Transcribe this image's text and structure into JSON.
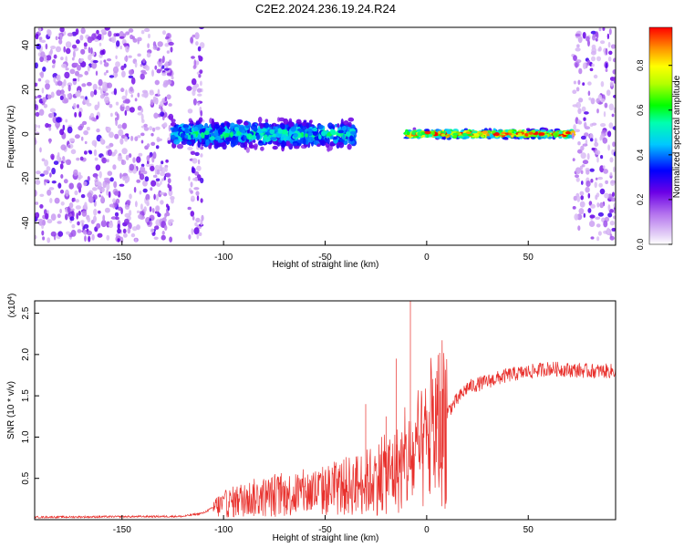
{
  "title": "C2E2.2024.236.19.24.R24",
  "spectrogram": {
    "type": "heatmap",
    "ylabel": "Frequency (Hz)",
    "xlabel": "Height of straight line (km)",
    "xlim": [
      -193,
      93
    ],
    "ylim": [
      -50,
      48
    ],
    "xticks": [
      -150,
      -100,
      -50,
      0,
      50
    ],
    "yticks": [
      -40,
      -20,
      0,
      20,
      40
    ],
    "colorbar": {
      "label": "Normalized spectral amplitude",
      "range": [
        0,
        0.97
      ],
      "ticks": [
        "0.0",
        "0.2",
        "0.4",
        "0.6",
        "0.8"
      ]
    },
    "regions": [
      {
        "name": "noise",
        "x": [
          -193,
          -125
        ],
        "spread_hz": 48,
        "density": 0.85
      },
      {
        "name": "noise-band",
        "x": [
          -117,
          -110
        ],
        "spread_hz": 48,
        "density": 0.9
      },
      {
        "name": "echo-broad",
        "x": [
          -125,
          -35
        ],
        "center_hz": 0,
        "half_width_hz": 8,
        "amplitude": 0.45
      },
      {
        "name": "echo-narrow",
        "x": [
          -10,
          72
        ],
        "center_hz": 0,
        "half_width_hz": 2.5,
        "amplitude": 0.9
      },
      {
        "name": "noise-right",
        "x": [
          72,
          93
        ],
        "spread_hz": 48,
        "density": 0.75
      }
    ]
  },
  "snr_plot": {
    "type": "line",
    "ylabel": "SNR (10 * v/v)",
    "xlabel": "Height of straight line (km)",
    "multiplier": "(x10",
    "multiplier_exp": "4",
    "multiplier_close": ")",
    "xlim": [
      -193,
      93
    ],
    "ylim": [
      0,
      26500
    ],
    "xticks": [
      -150,
      -100,
      -50,
      0,
      50
    ],
    "yticks": [
      "0.5",
      "1.0",
      "1.5",
      "2.0",
      "2.5"
    ],
    "color": "#e8302c",
    "anchors": {
      "x": [
        -193,
        -120,
        -110,
        -105,
        -90,
        -70,
        -50,
        -30,
        -15,
        -5,
        0,
        10,
        20,
        40,
        60,
        80,
        93
      ],
      "y": [
        300,
        400,
        800,
        1500,
        2500,
        3000,
        3500,
        4500,
        6000,
        7500,
        9000,
        13000,
        16000,
        17500,
        18300,
        18000,
        18000
      ]
    },
    "spikes": [
      {
        "x": -8,
        "y": 26500
      },
      {
        "x": -15,
        "y": 19500
      },
      {
        "x": 5,
        "y": 18000
      },
      {
        "x": -30,
        "y": 14000
      },
      {
        "x": -20,
        "y": 12500
      }
    ]
  }
}
